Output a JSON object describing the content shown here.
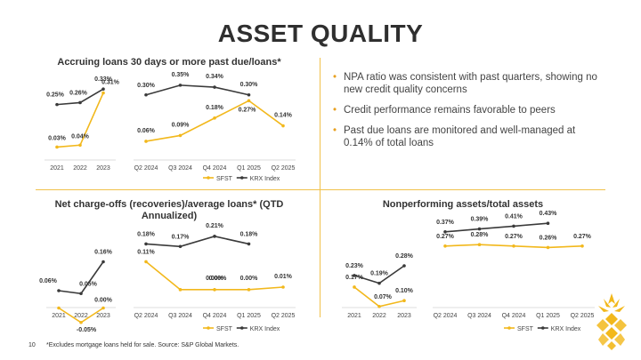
{
  "page": {
    "title": "ASSET QUALITY",
    "page_number": "10",
    "footnote": "*Excludes mortgage loans held for sale. Source: S&P Global Markets."
  },
  "bullets": [
    "NPA ratio was consistent with past quarters, showing no new credit quality concerns",
    "Credit performance remains favorable to peers",
    "Past due loans are monitored and well-managed at 0.14% of total loans"
  ],
  "colors": {
    "sfst": "#f2b81c",
    "krx": "#3a3a3a",
    "divider": "#f0c14b",
    "bullet": "#e8a020"
  },
  "chart_data": [
    {
      "id": "past_due",
      "type": "line",
      "title": "Accruing loans 30 days or more past due/loans*",
      "annual": {
        "categories": [
          "2021",
          "2022",
          "2023"
        ],
        "series": [
          {
            "name": "SFST",
            "values": [
              0.03,
              0.04,
              0.31
            ],
            "labels": [
              "0.03%",
              "0.04%",
              "0.31%"
            ]
          },
          {
            "name": "KRX Index",
            "values": [
              0.25,
              0.26,
              0.33
            ],
            "labels": [
              "0.25%",
              "0.26%",
              "0.33%"
            ]
          }
        ]
      },
      "quarterly": {
        "categories": [
          "Q2 2024",
          "Q3 2024",
          "Q4 2024",
          "Q1 2025",
          "Q2 2025"
        ],
        "series": [
          {
            "name": "SFST",
            "values": [
              0.06,
              0.09,
              0.18,
              0.27,
              0.14
            ],
            "labels": [
              "0.06%",
              "0.09%",
              "0.18%",
              "0.27%",
              "0.14%"
            ]
          },
          {
            "name": "KRX Index",
            "values": [
              0.3,
              0.35,
              0.34,
              0.3,
              null
            ],
            "labels": [
              "0.30%",
              "0.35%",
              "0.34%",
              "0.30%",
              ""
            ]
          }
        ]
      },
      "legend": [
        "SFST",
        "KRX Index"
      ],
      "ylim": [
        0,
        0.4
      ]
    },
    {
      "id": "charge_offs",
      "type": "line",
      "title": "Net charge-offs (recoveries)/average loans* (QTD Annualized)",
      "annual": {
        "categories": [
          "2021",
          "2022",
          "2023"
        ],
        "series": [
          {
            "name": "SFST",
            "values": [
              0.0,
              -0.05,
              0.0
            ],
            "labels": [
              "",
              "-0.05%",
              "0.00%"
            ]
          },
          {
            "name": "KRX Index",
            "values": [
              0.06,
              0.05,
              0.16
            ],
            "labels": [
              "0.06%",
              "0.05%",
              "0.16%"
            ]
          }
        ]
      },
      "quarterly": {
        "categories": [
          "Q2 2024",
          "Q3 2024",
          "Q4 2024",
          "Q1 2025",
          "Q2 2025"
        ],
        "series": [
          {
            "name": "SFST",
            "values": [
              0.11,
              0.0,
              0.0,
              0.0,
              0.01
            ],
            "labels": [
              "0.11%",
              "0.00%",
              "0.00%",
              "0.00%",
              "0.01%"
            ]
          },
          {
            "name": "KRX Index",
            "values": [
              0.18,
              0.17,
              0.21,
              0.18,
              null
            ],
            "labels": [
              "0.18%",
              "0.17%",
              "0.21%",
              "0.18%",
              ""
            ]
          }
        ]
      },
      "legend": [
        "SFST",
        "KRX Index"
      ],
      "ylim": [
        -0.06,
        0.22
      ]
    },
    {
      "id": "npa",
      "type": "line",
      "title": "Nonperforming assets/total assets",
      "annual": {
        "categories": [
          "2021",
          "2022",
          "2023"
        ],
        "series": [
          {
            "name": "SFST",
            "values": [
              0.17,
              0.07,
              0.1
            ],
            "labels": [
              "0.17%",
              "0.07%",
              "0.10%"
            ]
          },
          {
            "name": "KRX Index",
            "values": [
              0.23,
              0.19,
              0.28
            ],
            "labels": [
              "0.23%",
              "0.19%",
              "0.28%"
            ]
          }
        ]
      },
      "quarterly": {
        "categories": [
          "Q2 2024",
          "Q3 2024",
          "Q4 2024",
          "Q1 2025",
          "Q2 2025"
        ],
        "series": [
          {
            "name": "SFST",
            "values": [
              0.27,
              0.28,
              0.27,
              0.26,
              0.27
            ],
            "labels": [
              "0.27%",
              "0.28%",
              "0.27%",
              "0.26%",
              "0.27%"
            ]
          },
          {
            "name": "KRX Index",
            "values": [
              0.37,
              0.39,
              0.41,
              0.43,
              null
            ],
            "labels": [
              "0.37%",
              "0.39%",
              "0.41%",
              "0.43%",
              ""
            ]
          }
        ]
      },
      "legend": [
        "SFST",
        "KRX Index"
      ],
      "ylim": [
        0.0,
        0.45
      ]
    }
  ]
}
